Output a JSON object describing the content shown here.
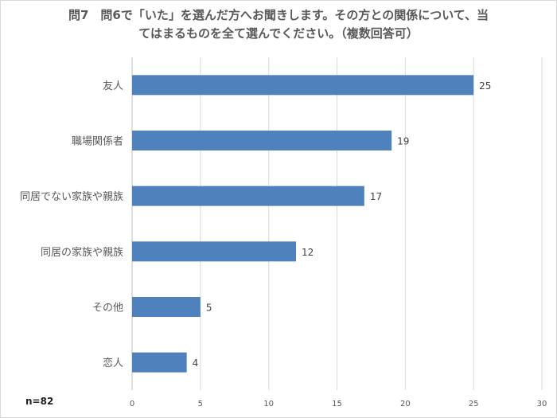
{
  "chart_data": {
    "type": "bar",
    "orientation": "horizontal",
    "title_line1": "問7　問6で「いた」を選んだ方へお聞きします。その方との関係について、当",
    "title_line2": "てはまるものを全て選んでください。（複数回答可）",
    "categories": [
      "友人",
      "職場関係者",
      "同居でない家族や親族",
      "同居の家族や親族",
      "その他",
      "恋人"
    ],
    "values": [
      25,
      19,
      17,
      12,
      5,
      4
    ],
    "xlim": [
      0,
      30
    ],
    "xticks": [
      0,
      5,
      10,
      15,
      20,
      25,
      30
    ],
    "grid": true,
    "bar_color": "#4f81bd",
    "xlabel": "",
    "ylabel": ""
  },
  "note": "n=82"
}
